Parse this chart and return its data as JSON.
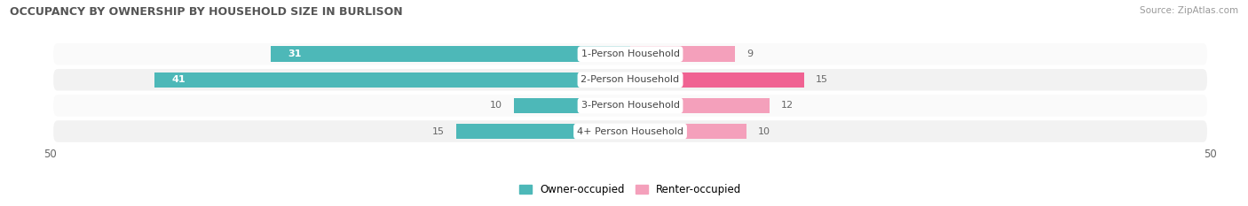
{
  "title": "OCCUPANCY BY OWNERSHIP BY HOUSEHOLD SIZE IN BURLISON",
  "source": "Source: ZipAtlas.com",
  "categories": [
    "1-Person Household",
    "2-Person Household",
    "3-Person Household",
    "4+ Person Household"
  ],
  "owner_values": [
    31,
    41,
    10,
    15
  ],
  "renter_values": [
    9,
    15,
    12,
    10
  ],
  "owner_color": "#4db8b8",
  "renter_color_1": "#f4a0bb",
  "renter_color_2": "#f06292",
  "renter_colors": [
    "#f4a0bb",
    "#f06292",
    "#f4a0bb",
    "#f4a0bb"
  ],
  "row_bg_light": "#f2f2f2",
  "row_bg_white": "#fafafa",
  "label_color": "#666666",
  "axis_max": 50,
  "legend_owner": "Owner-occupied",
  "legend_renter": "Renter-occupied"
}
